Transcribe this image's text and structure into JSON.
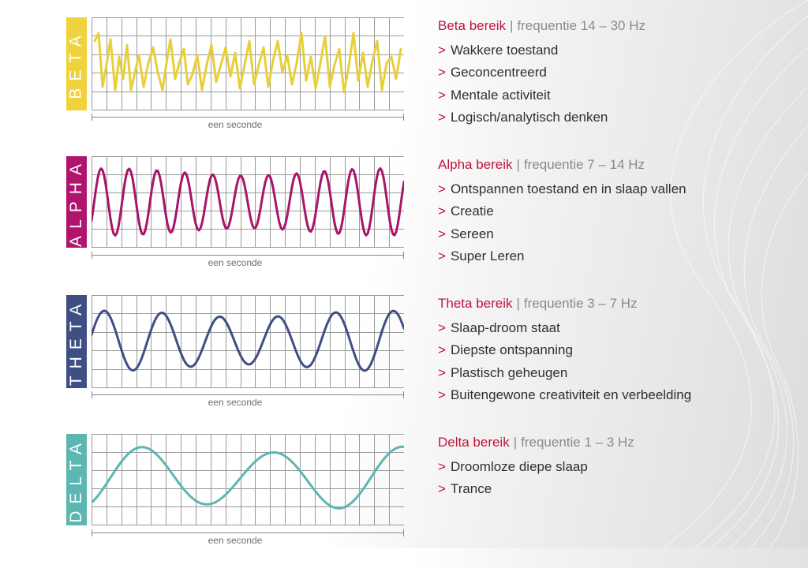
{
  "bands": [
    {
      "id": "beta",
      "label": "BETA",
      "color": "#f0d23c",
      "wave_color": "#e8cf3a",
      "scale_caption": "een seconde",
      "range_name": "Beta bereik",
      "separator": "|",
      "frequency": "frequentie 14 – 30 Hz",
      "bullet": ">",
      "items": [
        "Wakkere toestand",
        "Geconcentreerd",
        "Mentale activiteit",
        "Logisch/analytisch denken"
      ]
    },
    {
      "id": "alpha",
      "label": "ALPHA",
      "color": "#b0146e",
      "wave_color": "#a8146a",
      "scale_caption": "een seconde",
      "range_name": "Alpha bereik",
      "separator": "|",
      "frequency": "frequentie 7 – 14 Hz",
      "bullet": ">",
      "items": [
        "Ontspannen toestand en in slaap vallen",
        "Creatie",
        "Sereen",
        "Super Leren"
      ]
    },
    {
      "id": "theta",
      "label": "THETA",
      "color": "#3e4f84",
      "wave_color": "#3e4f84",
      "scale_caption": "een seconde",
      "range_name": "Theta bereik",
      "separator": "|",
      "frequency": "frequentie 3 – 7 Hz",
      "bullet": ">",
      "items": [
        "Slaap-droom staat",
        "Diepste ontspanning",
        "Plastisch geheugen",
        "Buitengewone creativiteit en verbeelding"
      ]
    },
    {
      "id": "delta",
      "label": "DELTA",
      "color": "#5cb6b2",
      "wave_color": "#5cb6b2",
      "scale_caption": "een seconde",
      "range_name": "Delta bereik",
      "separator": "|",
      "frequency": "frequentie 1 – 3 Hz",
      "bullet": ">",
      "items": [
        "Droomloze diepe slaap",
        "Trance"
      ]
    }
  ]
}
